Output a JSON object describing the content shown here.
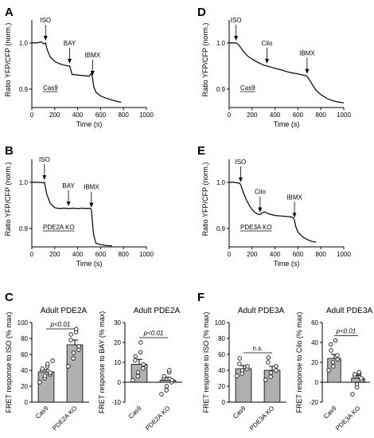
{
  "panels": {
    "A": "A",
    "B": "B",
    "C": "C",
    "D": "D",
    "E": "E",
    "F": "F"
  },
  "chart_data": [
    {
      "panel": "A",
      "type": "line",
      "xlabel": "Time (s)",
      "ylabel": "Ratio YFP/CFP (norm.)",
      "xlim": [
        0,
        1000
      ],
      "ylim": [
        0.86,
        1.05
      ],
      "xticks": [
        "0",
        "200",
        "400",
        "600",
        "800",
        "1000"
      ],
      "yticks": [
        "0.9",
        "1.0"
      ],
      "box_label": "Cas9",
      "annotations": [
        {
          "text": "ISO",
          "x": 120
        },
        {
          "text": "BAY",
          "x": 330
        },
        {
          "text": "IBMX",
          "x": 530
        }
      ],
      "x": [
        0,
        40,
        80,
        110,
        120,
        135,
        160,
        200,
        240,
        280,
        320,
        330,
        340,
        350,
        380,
        420,
        460,
        500,
        520,
        530,
        540,
        560,
        600,
        650,
        700,
        750,
        780
      ],
      "y": [
        1.0,
        1.0,
        1.002,
        0.998,
        1.0,
        0.985,
        0.97,
        0.96,
        0.955,
        0.952,
        0.95,
        0.95,
        0.942,
        0.932,
        0.931,
        0.93,
        0.929,
        0.928,
        0.934,
        0.924,
        0.905,
        0.893,
        0.885,
        0.88,
        0.876,
        0.873,
        0.871
      ]
    },
    {
      "panel": "B",
      "type": "line",
      "xlabel": "Time (s)",
      "ylabel": "Ratio YFP/CFP (norm.)",
      "xlim": [
        0,
        1000
      ],
      "ylim": [
        0.86,
        1.05
      ],
      "xticks": [
        "0",
        "200",
        "400",
        "600",
        "800",
        "1000"
      ],
      "yticks": [
        "0.9",
        "1.0"
      ],
      "box_label": "PDE2A KO",
      "annotations": [
        {
          "text": "ISO",
          "x": 110
        },
        {
          "text": "BAY",
          "x": 320
        },
        {
          "text": "IBMX",
          "x": 520
        }
      ],
      "x": [
        0,
        50,
        100,
        110,
        130,
        160,
        200,
        240,
        280,
        320,
        360,
        400,
        440,
        480,
        510,
        520,
        530,
        540,
        560,
        600,
        650,
        700
      ],
      "y": [
        1.0,
        1.0,
        0.999,
        1.0,
        0.975,
        0.955,
        0.945,
        0.943,
        0.944,
        0.943,
        0.944,
        0.943,
        0.944,
        0.943,
        0.944,
        0.94,
        0.91,
        0.885,
        0.868,
        0.865,
        0.863,
        0.862
      ]
    },
    {
      "panel": "D",
      "type": "line",
      "xlabel": "Time (s)",
      "ylabel": "Ratio YFP/CFP (norm.)",
      "xlim": [
        0,
        1000
      ],
      "ylim": [
        0.86,
        1.05
      ],
      "xticks": [
        "0",
        "200",
        "400",
        "600",
        "800",
        "1000"
      ],
      "yticks": [
        "0.9",
        "1.0"
      ],
      "box_label": "Cas9",
      "annotations": [
        {
          "text": "ISO",
          "x": 60
        },
        {
          "text": "Cilo",
          "x": 330
        },
        {
          "text": "IBMX",
          "x": 680
        }
      ],
      "x": [
        0,
        30,
        60,
        80,
        100,
        130,
        160,
        200,
        250,
        300,
        330,
        360,
        400,
        450,
        500,
        550,
        600,
        650,
        680,
        700,
        730,
        760,
        800,
        850,
        900,
        950,
        1000
      ],
      "y": [
        1.0,
        1.0,
        1.0,
        0.997,
        0.99,
        0.98,
        0.972,
        0.965,
        0.958,
        0.952,
        0.95,
        0.948,
        0.945,
        0.942,
        0.938,
        0.935,
        0.933,
        0.93,
        0.928,
        0.92,
        0.908,
        0.897,
        0.888,
        0.88,
        0.875,
        0.872,
        0.87
      ]
    },
    {
      "panel": "E",
      "type": "line",
      "xlabel": "Time (s)",
      "ylabel": "Ratio YFP/CFP (norm.)",
      "xlim": [
        0,
        1000
      ],
      "ylim": [
        0.86,
        1.05
      ],
      "xticks": [
        "0",
        "200",
        "400",
        "600",
        "800",
        "1000"
      ],
      "yticks": [
        "0.9",
        "1.0"
      ],
      "box_label": "PDE3A KO",
      "annotations": [
        {
          "text": "ISO",
          "x": 100
        },
        {
          "text": "Cilo",
          "x": 270
        },
        {
          "text": "IBMX",
          "x": 570
        }
      ],
      "x": [
        0,
        40,
        90,
        100,
        120,
        150,
        180,
        210,
        240,
        270,
        290,
        310,
        340,
        370,
        400,
        450,
        500,
        540,
        560,
        570,
        580,
        600,
        640,
        680,
        720,
        760
      ],
      "y": [
        1.0,
        1.0,
        0.998,
        0.995,
        0.98,
        0.962,
        0.948,
        0.938,
        0.932,
        0.93,
        0.934,
        0.936,
        0.932,
        0.93,
        0.928,
        0.927,
        0.926,
        0.925,
        0.923,
        0.918,
        0.905,
        0.892,
        0.882,
        0.876,
        0.872,
        0.87
      ]
    },
    {
      "panel": "C",
      "type": "bar",
      "title": "Adult PDE2A",
      "ylabel": "FRET response to ISO (% max)",
      "ylim": [
        0,
        100
      ],
      "yticks": [
        "0",
        "20",
        "40",
        "60",
        "80",
        "100"
      ],
      "categories": [
        "Cas9",
        "PDE2A KO"
      ],
      "values": [
        38,
        72
      ],
      "errors": [
        3,
        6
      ],
      "points": [
        [
          25,
          30,
          33,
          35,
          37,
          40,
          42,
          45,
          48,
          52
        ],
        [
          45,
          55,
          62,
          66,
          70,
          78,
          85,
          88,
          92
        ]
      ],
      "significance": "p<0.01"
    },
    {
      "panel": "C",
      "type": "bar",
      "title": "Adult PDE2A",
      "ylabel": "FRET response to BAY (% max)",
      "ylim": [
        -10,
        30
      ],
      "yticks": [
        "-10",
        "0",
        "10",
        "20",
        "30"
      ],
      "categories": [
        "Cas9",
        "PDE2A KO"
      ],
      "values": [
        9,
        1
      ],
      "errors": [
        2.5,
        1.5
      ],
      "points": [
        [
          1,
          3,
          5,
          7,
          9,
          11,
          13,
          15,
          20
        ],
        [
          -6,
          -4,
          -2,
          0,
          1,
          2,
          3,
          5,
          6
        ]
      ],
      "significance": "p<0.01"
    },
    {
      "panel": "F",
      "type": "bar",
      "title": "Adult PDE3A",
      "ylabel": "FRET response to ISO (% max)",
      "ylim": [
        0,
        100
      ],
      "yticks": [
        "0",
        "20",
        "40",
        "60",
        "80",
        "100"
      ],
      "categories": [
        "Cas9",
        "PDE3A KO"
      ],
      "values": [
        42,
        40
      ],
      "errors": [
        4,
        5
      ],
      "points": [
        [
          33,
          36,
          40,
          42,
          45,
          48,
          55
        ],
        [
          28,
          32,
          37,
          40,
          45,
          50,
          56
        ]
      ],
      "significance": "n.s."
    },
    {
      "panel": "F",
      "type": "bar",
      "title": "Adult PDE3A",
      "ylabel": "FRET response to Cilo (% max)",
      "ylim": [
        -20,
        60
      ],
      "yticks": [
        "-20",
        "0",
        "20",
        "40",
        "60"
      ],
      "categories": [
        "Cas9",
        "PDE3A KO"
      ],
      "values": [
        24,
        4
      ],
      "errors": [
        4,
        3
      ],
      "points": [
        [
          12,
          16,
          20,
          23,
          27,
          32,
          38,
          42
        ],
        [
          -12,
          -5,
          -2,
          2,
          4,
          6,
          8,
          9,
          10
        ]
      ],
      "significance": "p<0.01"
    }
  ]
}
